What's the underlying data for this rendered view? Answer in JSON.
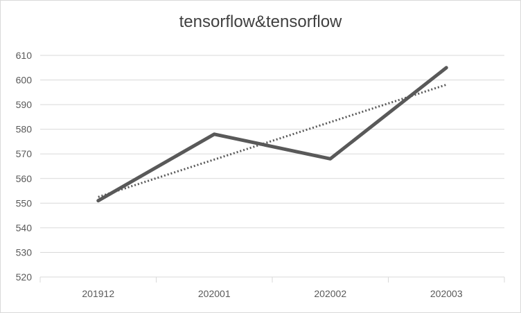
{
  "chart_data": {
    "type": "line",
    "title": "tensorflow&tensorflow",
    "categories": [
      "201912",
      "202001",
      "202002",
      "202003"
    ],
    "series": [
      {
        "values": [
          551,
          578,
          568,
          605
        ],
        "color": "#595959",
        "style": "solid"
      }
    ],
    "trendline": {
      "type": "linear",
      "values": [
        552.5,
        567.7,
        582.9,
        598.1
      ],
      "color": "#595959",
      "style": "dotted"
    },
    "ylim": [
      520,
      610
    ],
    "yticks": [
      520,
      530,
      540,
      550,
      560,
      570,
      580,
      590,
      600,
      610
    ],
    "grid": true,
    "legend": "none"
  }
}
